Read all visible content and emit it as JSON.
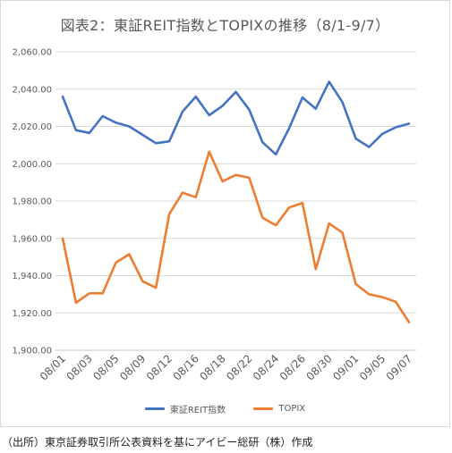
{
  "source_note": "（出所）東京証券取引所公表資料を基にアイビー総研（株）作成",
  "chart_data": {
    "type": "line",
    "title": "図表2：東証REIT指数とTOPIXの推移（8/1-9/7）",
    "ylim": [
      1900,
      2060
    ],
    "y_ticks": [
      "1,900.00",
      "1,920.00",
      "1,940.00",
      "1,960.00",
      "1,980.00",
      "2,000.00",
      "2,020.00",
      "2,040.00",
      "2,060.00"
    ],
    "y_tick_values": [
      1900,
      1920,
      1940,
      1960,
      1980,
      2000,
      2020,
      2040,
      2060
    ],
    "grid": "horizontal",
    "legend_position": "bottom",
    "x_tick_labels": [
      "08/01",
      "08/03",
      "08/05",
      "08/09",
      "08/12",
      "08/16",
      "08/18",
      "08/22",
      "08/24",
      "08/26",
      "08/30",
      "09/01",
      "09/05",
      "09/07"
    ],
    "x_tick_indices": [
      0,
      2,
      4,
      6,
      8,
      10,
      12,
      14,
      16,
      18,
      20,
      22,
      24,
      26
    ],
    "series": [
      {
        "name": "東証REIT指数",
        "color": "#4472c4",
        "values": [
          2036,
          2018,
          2016.5,
          2025.5,
          2022,
          2020,
          2015.5,
          2011,
          2012,
          2028,
          2036,
          2026,
          2031,
          2038.5,
          2029,
          2011.5,
          2005,
          2019,
          2035.5,
          2029.5,
          2044,
          2033,
          2013.5,
          2009,
          2016,
          2019.5,
          2021.5
        ]
      },
      {
        "name": "TOPIX",
        "color": "#ed7d31",
        "values": [
          1960,
          1925.5,
          1930.5,
          1930.5,
          1947,
          1951.5,
          1937,
          1933.5,
          1973,
          1984.5,
          1982,
          2006.5,
          1990.5,
          1994,
          1992.5,
          1971,
          1967,
          1976.5,
          1979,
          1943.5,
          1968,
          1963,
          1935.5,
          1930,
          1928.5,
          1926,
          1915
        ]
      }
    ]
  }
}
